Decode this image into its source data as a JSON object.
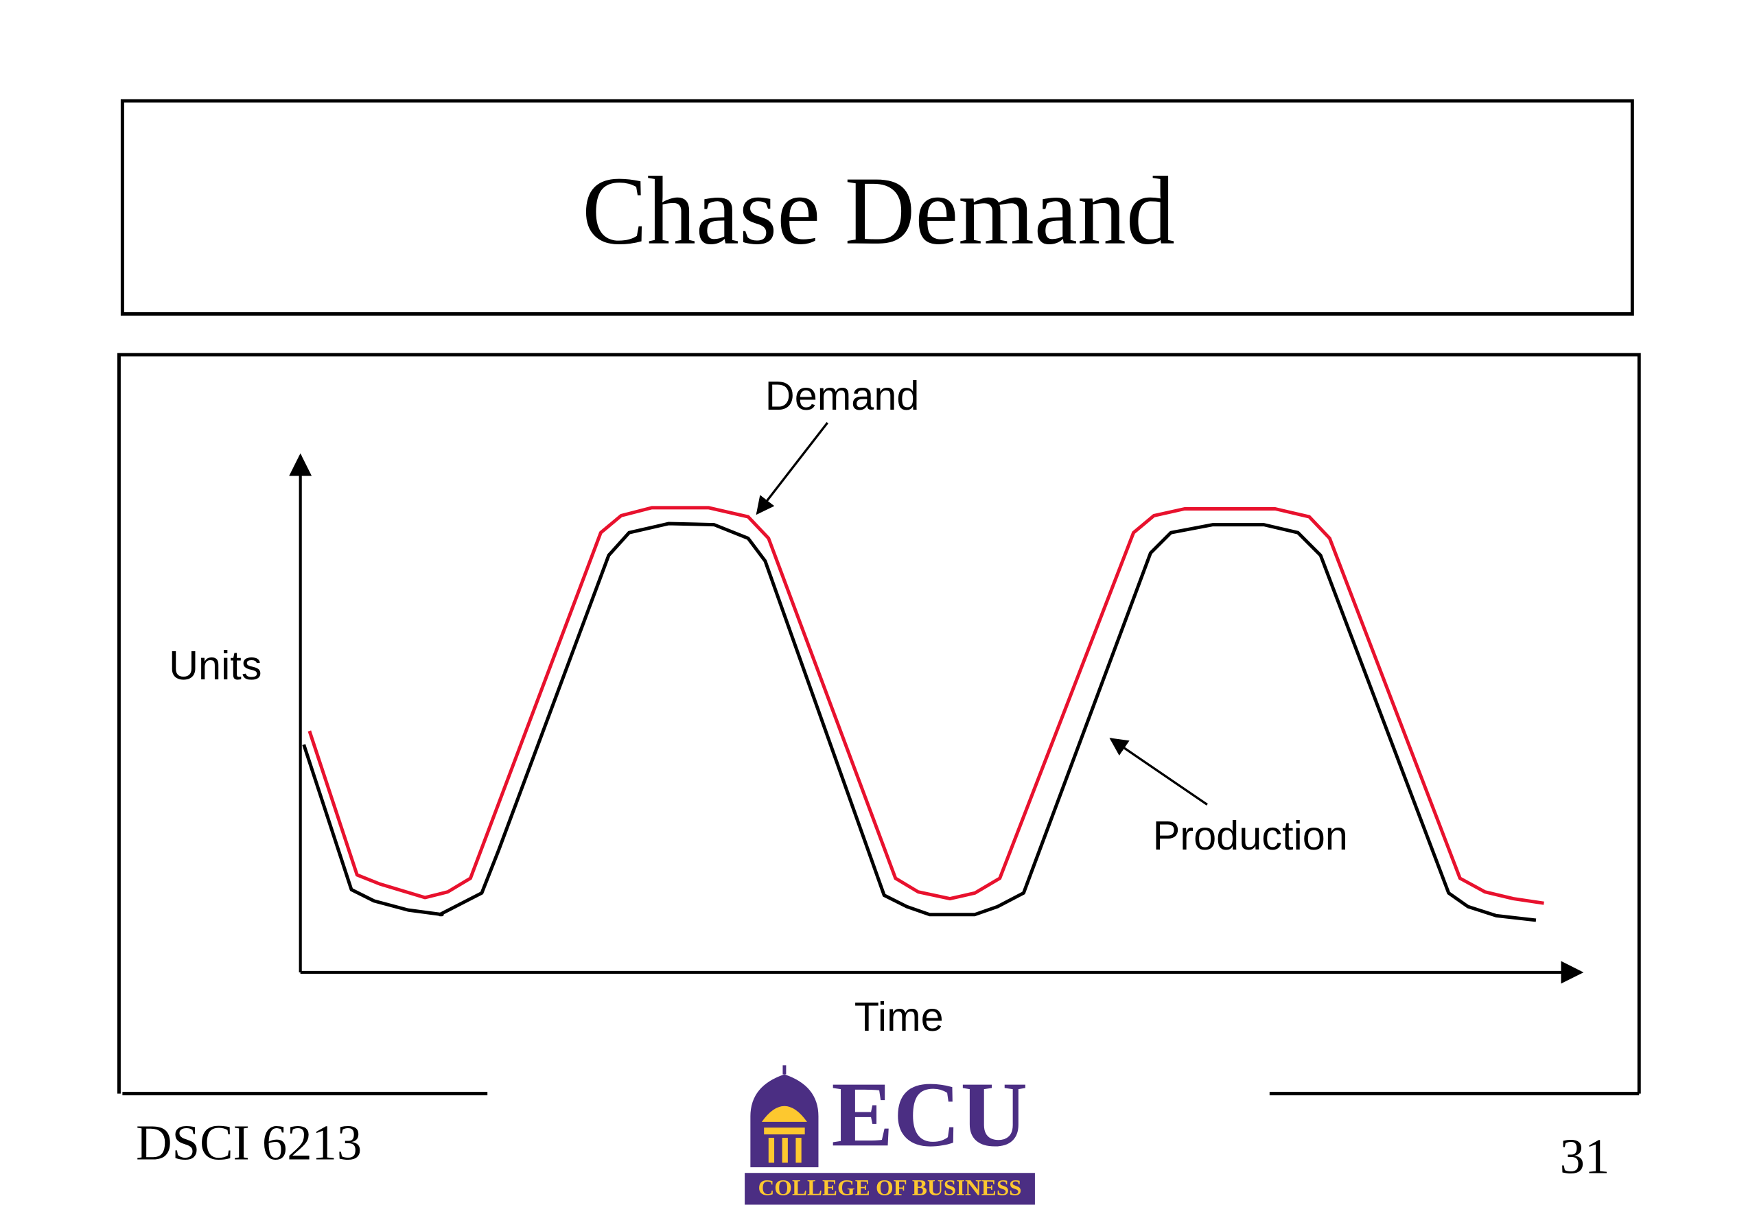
{
  "slide": {
    "title": "Chase Demand",
    "diagram": {
      "y_label": "Units",
      "x_label": "Time",
      "demand_label": "Demand",
      "production_label": "Production"
    },
    "footer": {
      "course": "DSCI 6213",
      "page": "31",
      "logo": {
        "wordmark": "ECU",
        "tagline": "COLLEGE OF BUSINESS"
      }
    }
  }
}
